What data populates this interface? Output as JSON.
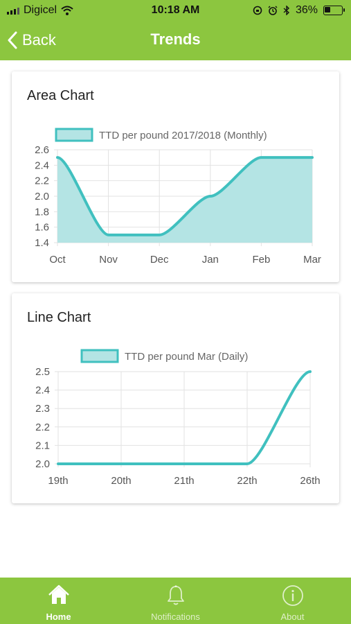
{
  "status_bar": {
    "carrier": "Digicel",
    "time": "10:18 AM",
    "battery": "36%"
  },
  "nav": {
    "back_label": "Back",
    "title": "Trends"
  },
  "theme": {
    "header_color": "#8cc63f",
    "line_color": "#40c0bf",
    "area_fill": "#b4e4e4",
    "grid_color": "#e2e2e2"
  },
  "charts": {
    "area": {
      "card_title": "Area Chart"
    },
    "line": {
      "card_title": "Line Chart"
    }
  },
  "chart_data": [
    {
      "type": "area",
      "categories": [
        "Oct",
        "Nov",
        "Dec",
        "Jan",
        "Feb",
        "Mar"
      ],
      "series": [
        {
          "name": "TTD per pound 2017/2018 (Monthly)",
          "values": [
            2.5,
            1.5,
            1.5,
            2.0,
            2.5,
            2.5
          ]
        }
      ],
      "ylim": [
        1.4,
        2.6
      ],
      "yticks": [
        "2.6",
        "2.4",
        "2.2",
        "2.0",
        "1.8",
        "1.6",
        "1.4"
      ],
      "grid": true,
      "legend": "top-center"
    },
    {
      "type": "line",
      "categories": [
        "19th",
        "20th",
        "21th",
        "22th",
        "26th"
      ],
      "series": [
        {
          "name": "TTD per pound Mar (Daily)",
          "values": [
            2.0,
            2.0,
            2.0,
            2.0,
            2.5
          ]
        }
      ],
      "ylim": [
        2.0,
        2.5
      ],
      "yticks": [
        "2.5",
        "2.4",
        "2.3",
        "2.2",
        "2.1",
        "2.0"
      ],
      "grid": true,
      "legend": "top-center"
    }
  ],
  "tabs": [
    {
      "label": "Home",
      "icon": "home-icon",
      "active": true
    },
    {
      "label": "Notifications",
      "icon": "bell-icon",
      "active": false
    },
    {
      "label": "About",
      "icon": "info-icon",
      "active": false
    }
  ]
}
